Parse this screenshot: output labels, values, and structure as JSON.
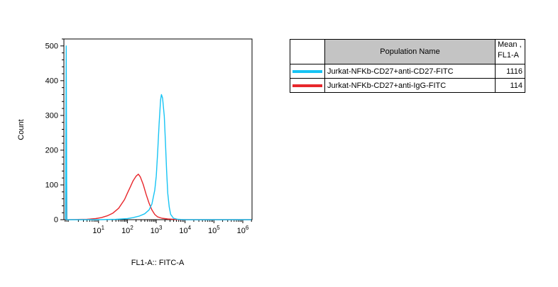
{
  "chart_data": {
    "type": "line",
    "title": "",
    "xlabel": "FL1-A:: FITC-A",
    "ylabel": "Count",
    "x_scale": "log10",
    "x_range_log10": [
      -0.2,
      6.32
    ],
    "x_major_decades": [
      1,
      2,
      3,
      4,
      5,
      6
    ],
    "ylim": [
      0,
      520
    ],
    "y_ticks": [
      0,
      100,
      200,
      300,
      400,
      500
    ],
    "y_minor_step": 20,
    "grid": false,
    "legend_position": "table-right",
    "series": [
      {
        "name": "Jurkat-NFKb-CD27+anti-IgG-FITC",
        "color": "#e8272c",
        "peak_count": 131,
        "points": [
          [
            -0.14,
            0
          ],
          [
            -0.12,
            290
          ],
          [
            -0.1,
            0
          ],
          [
            0.6,
            1
          ],
          [
            0.9,
            3
          ],
          [
            1.1,
            6
          ],
          [
            1.3,
            11
          ],
          [
            1.5,
            19
          ],
          [
            1.7,
            33
          ],
          [
            1.9,
            58
          ],
          [
            2.0,
            76
          ],
          [
            2.1,
            94
          ],
          [
            2.2,
            112
          ],
          [
            2.3,
            125
          ],
          [
            2.38,
            131
          ],
          [
            2.45,
            123
          ],
          [
            2.55,
            101
          ],
          [
            2.65,
            73
          ],
          [
            2.75,
            48
          ],
          [
            2.85,
            28
          ],
          [
            2.95,
            15
          ],
          [
            3.05,
            8
          ],
          [
            3.2,
            4
          ],
          [
            3.4,
            2
          ],
          [
            3.6,
            1
          ],
          [
            3.8,
            0
          ],
          [
            6.3,
            0
          ]
        ]
      },
      {
        "name": "Jurkat-NFKb-CD27+anti-CD27-FITC",
        "color": "#17c4f4",
        "peak_count": 360,
        "points": [
          [
            -0.14,
            0
          ],
          [
            -0.12,
            500
          ],
          [
            -0.1,
            0
          ],
          [
            1.0,
            0
          ],
          [
            1.6,
            1
          ],
          [
            2.0,
            3
          ],
          [
            2.2,
            6
          ],
          [
            2.4,
            10
          ],
          [
            2.6,
            17
          ],
          [
            2.75,
            28
          ],
          [
            2.85,
            45
          ],
          [
            2.95,
            85
          ],
          [
            3.0,
            125
          ],
          [
            3.05,
            195
          ],
          [
            3.1,
            275
          ],
          [
            3.15,
            345
          ],
          [
            3.18,
            360
          ],
          [
            3.22,
            350
          ],
          [
            3.28,
            298
          ],
          [
            3.32,
            220
          ],
          [
            3.36,
            140
          ],
          [
            3.4,
            76
          ],
          [
            3.45,
            36
          ],
          [
            3.5,
            15
          ],
          [
            3.6,
            4
          ],
          [
            3.75,
            1
          ],
          [
            4.0,
            0
          ],
          [
            6.3,
            0
          ]
        ]
      }
    ]
  },
  "table": {
    "header": {
      "swatch": "",
      "population": "Population Name",
      "mean_line1": "Mean ,",
      "mean_line2": "FL1-A"
    },
    "rows": [
      {
        "swatch_color": "#17c4f4",
        "population": "Jurkat-NFKb-CD27+anti-CD27-FITC",
        "mean": "1116"
      },
      {
        "swatch_color": "#e8272c",
        "population": "Jurkat-NFKb-CD27+anti-IgG-FITC",
        "mean": "114"
      }
    ]
  }
}
